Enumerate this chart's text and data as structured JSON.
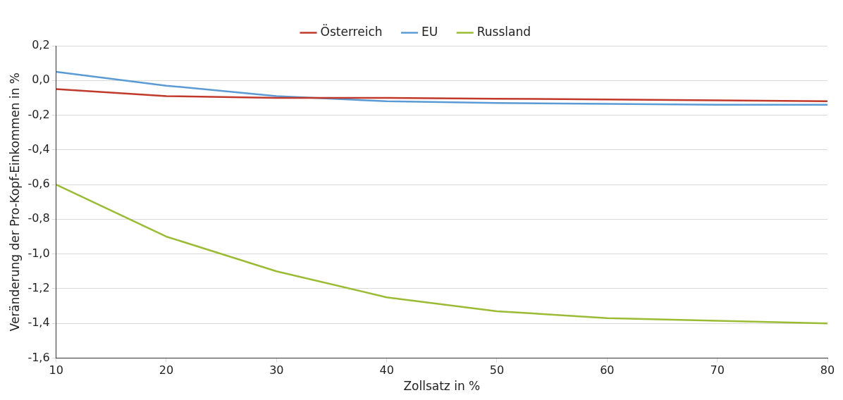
{
  "chart_data": {
    "type": "line",
    "xlabel": "Zollsatz in %",
    "ylabel": "Veränderung der Pro-Kopf-Einkommen in %",
    "x": [
      10,
      20,
      30,
      40,
      50,
      60,
      70,
      80
    ],
    "series": [
      {
        "name": "Österreich",
        "color": "#c0392b",
        "values": [
          -0.05,
          -0.09,
          -0.1,
          -0.1,
          -0.105,
          -0.11,
          -0.115,
          -0.12
        ]
      },
      {
        "name": "EU",
        "color": "#5b9bd5",
        "values": [
          0.05,
          -0.03,
          -0.09,
          -0.12,
          -0.13,
          -0.135,
          -0.14,
          -0.14
        ]
      },
      {
        "name": "Russland",
        "color": "#9bbb35",
        "values": [
          -0.6,
          -0.9,
          -1.1,
          -1.25,
          -1.33,
          -1.37,
          -1.385,
          -1.4
        ]
      }
    ],
    "xlim": [
      10,
      80
    ],
    "xticks": [
      10,
      20,
      30,
      40,
      50,
      60,
      70,
      80
    ],
    "ylim": [
      -1.6,
      0.2
    ],
    "yticks": [
      {
        "value": 0.2,
        "label": "0,2"
      },
      {
        "value": 0,
        "label": "0,0"
      },
      {
        "value": -0.2,
        "label": "-0,2"
      },
      {
        "value": -0.4,
        "label": "-0,4"
      },
      {
        "value": -0.6,
        "label": "-0,6"
      },
      {
        "value": -0.8,
        "label": "-0,8"
      },
      {
        "value": -1,
        "label": "-1,0"
      },
      {
        "value": -1.2,
        "label": "-1,2"
      },
      {
        "value": -1.4,
        "label": "-1,4"
      },
      {
        "value": -1.6,
        "label": "-1,6"
      }
    ],
    "grid": "y",
    "legend": "top",
    "marker": "none",
    "line_style": "solid"
  }
}
